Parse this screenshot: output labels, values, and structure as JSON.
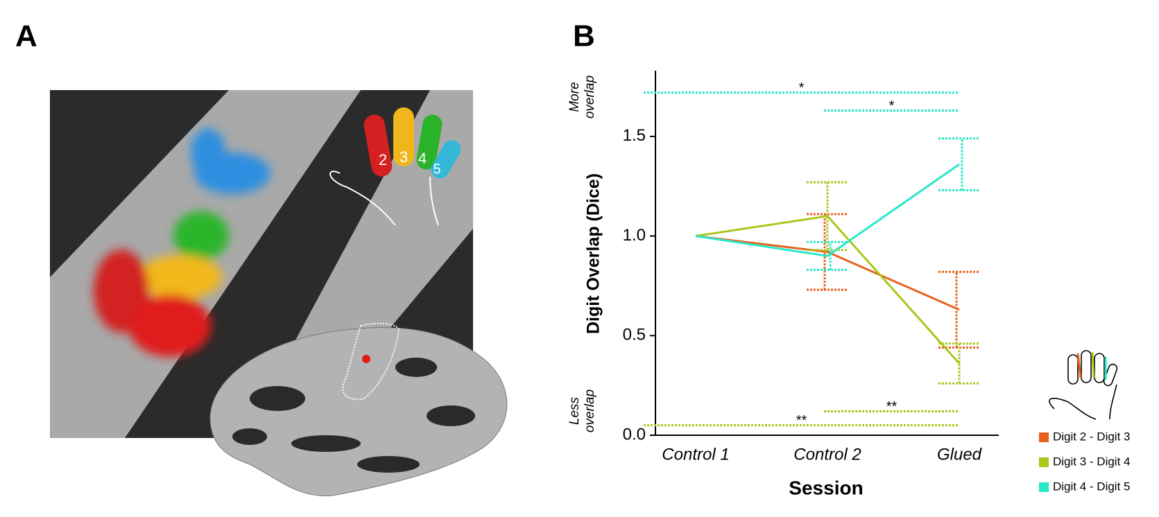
{
  "panels": [
    "A",
    "B"
  ],
  "hand_digits": [
    "2",
    "3",
    "4",
    "5"
  ],
  "chart_data": {
    "type": "line",
    "y_label": "Digit Overlap (Dice)",
    "x_label": "Session",
    "y_top_note": "More overlap",
    "y_bottom_note": "Less overlap",
    "categories": [
      "Control 1",
      "Control 2",
      "Glued"
    ],
    "ylim": [
      0,
      1.83
    ],
    "yticks": [
      {
        "value": 0,
        "label": "0.0"
      },
      0.5,
      {
        "value": 1,
        "label": "1.0"
      },
      1.5
    ],
    "series": [
      {
        "name": "Digit 2 - Digit 3",
        "color": "#e8611a",
        "values": [
          1.0,
          0.92,
          0.63
        ],
        "errors": [
          null,
          0.19,
          0.19
        ]
      },
      {
        "name": "Digit 3 - Digit 4",
        "color": "#a8c81a",
        "values": [
          1.0,
          1.1,
          0.36
        ],
        "errors": [
          null,
          0.17,
          0.1
        ]
      },
      {
        "name": "Digit 4 - Digit 5",
        "color": "#27e8c8",
        "values": [
          1.0,
          0.9,
          1.36
        ],
        "errors": [
          null,
          0.07,
          0.13
        ]
      }
    ],
    "significance": [
      {
        "label": "*",
        "y": 1.72,
        "x": [
          0,
          2
        ],
        "color": "#27e8c8"
      },
      {
        "label": "*",
        "y": 1.63,
        "x": [
          1,
          2
        ],
        "color": "#27e8c8"
      },
      {
        "label": "**",
        "y": 0.12,
        "x": [
          1,
          2
        ],
        "color": "#a8c81a"
      },
      {
        "label": "**",
        "y": 0.05,
        "x": [
          0,
          2
        ],
        "color": "#a8c81a"
      }
    ]
  }
}
